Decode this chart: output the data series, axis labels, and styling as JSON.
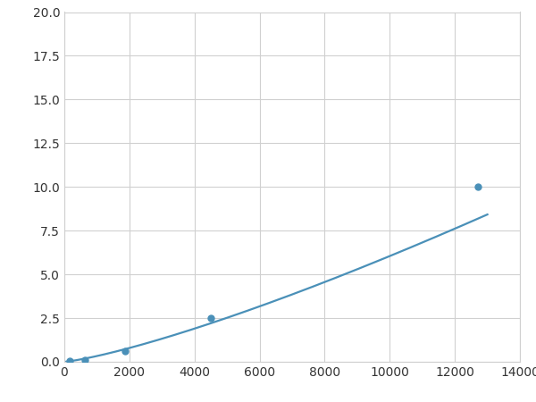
{
  "marker_x": [
    156.25,
    625,
    1875,
    4500,
    12700
  ],
  "marker_y": [
    0.05,
    0.1,
    0.6,
    2.5,
    10.0
  ],
  "line_color": "#4a90b8",
  "marker_color": "#4a90b8",
  "xlim": [
    0,
    14000
  ],
  "ylim": [
    0,
    20.0
  ],
  "xticks": [
    0,
    2000,
    4000,
    6000,
    8000,
    10000,
    12000,
    14000
  ],
  "yticks": [
    0.0,
    2.5,
    5.0,
    7.5,
    10.0,
    12.5,
    15.0,
    17.5,
    20.0
  ],
  "xtick_labels": [
    "0",
    "2000",
    "4000",
    "6000",
    "8000",
    "10000",
    "12000",
    "14000"
  ],
  "ytick_labels": [
    "0.0",
    "2.5",
    "5.0",
    "7.5",
    "10.0",
    "12.5",
    "15.0",
    "17.5",
    "20.0"
  ],
  "grid_color": "#d0d0d0",
  "background_color": "#ffffff",
  "marker_size": 5,
  "line_width": 1.6
}
